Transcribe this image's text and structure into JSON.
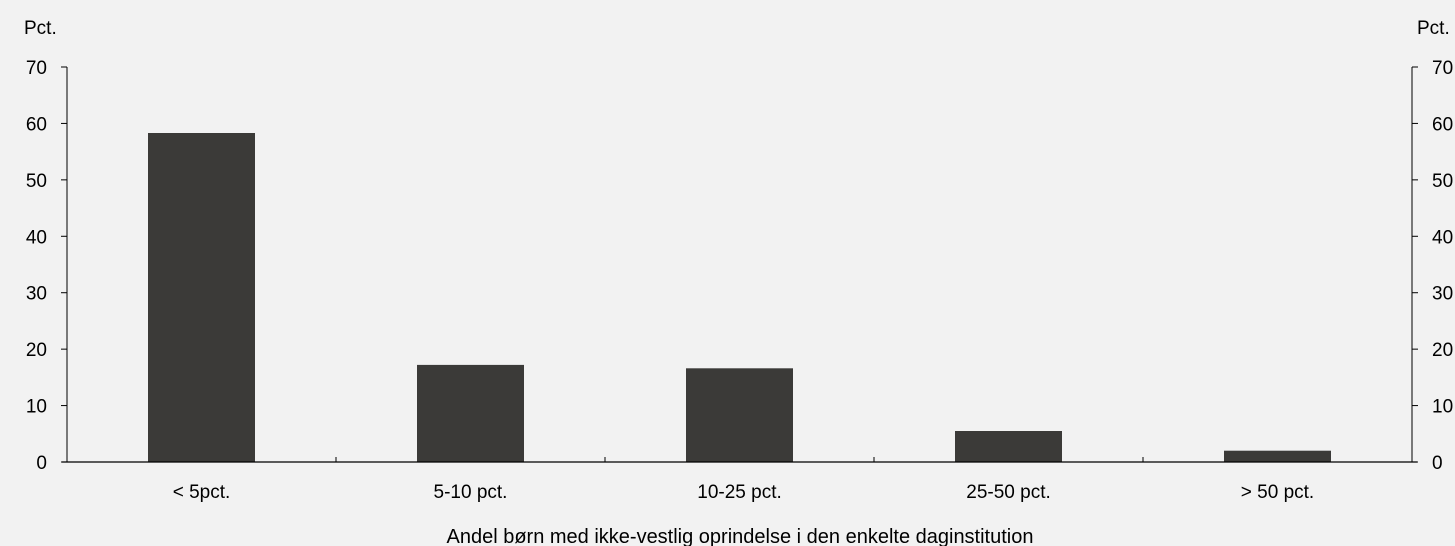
{
  "chart_data": {
    "type": "bar",
    "categories": [
      "< 5pct.",
      "5-10 pct.",
      "10-25 pct.",
      "25-50 pct.",
      "> 50 pct."
    ],
    "values": [
      58.3,
      17.2,
      16.6,
      5.5,
      2.0
    ],
    "xlabel": "Andel børn med ikke-vestlig oprindelse i den enkelte daginstitution",
    "ylabel_left": "Pct.",
    "ylabel_right": "Pct.",
    "ylim": [
      0,
      70
    ],
    "yticks": [
      0,
      10,
      20,
      30,
      40,
      50,
      60,
      70
    ],
    "grid": false,
    "legend": "none",
    "colors": {
      "bar": "#3b3a38",
      "axis": "#000000",
      "background": "#f2f2f2"
    }
  }
}
